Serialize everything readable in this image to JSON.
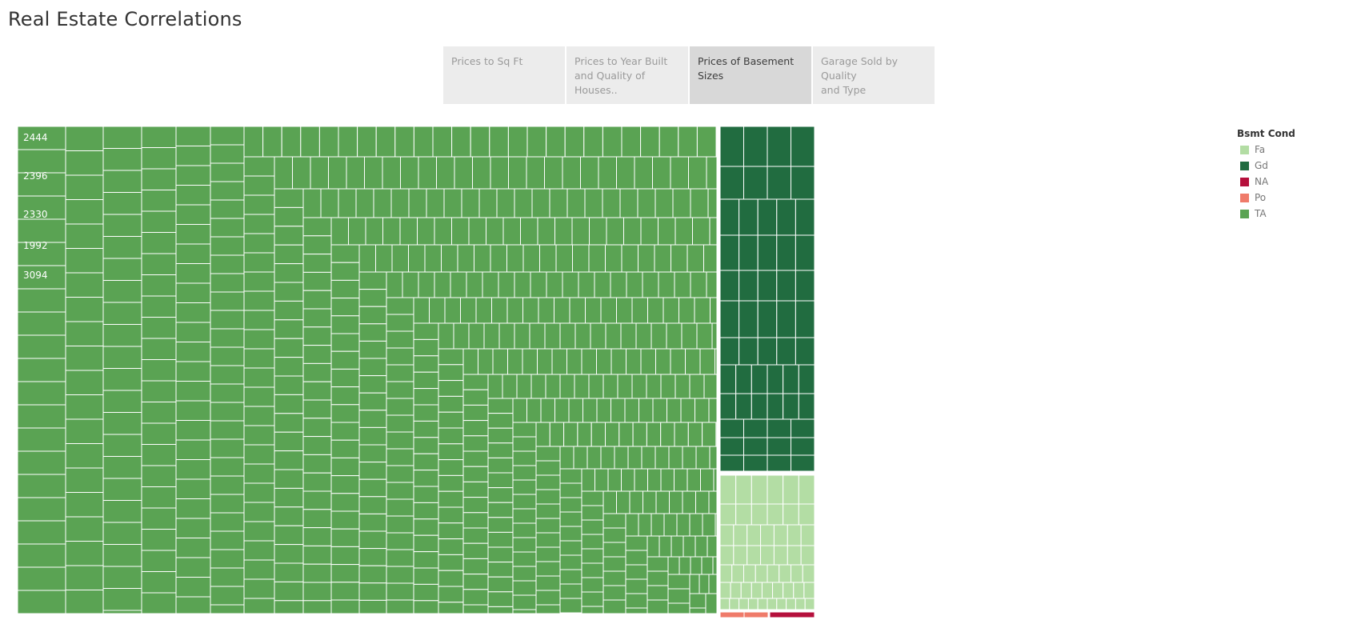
{
  "title": "Real Estate Correlations",
  "tabs": [
    {
      "line1": "Prices to Sq Ft",
      "line2": "",
      "active": false
    },
    {
      "line1": "Prices to Year Built",
      "line2": "and Quality of Houses..",
      "active": false
    },
    {
      "line1": "Prices of Basement",
      "line2": "Sizes",
      "active": true
    },
    {
      "line1": "Garage Sold by Quality",
      "line2": "and Type",
      "active": false
    }
  ],
  "legend": {
    "title": "Bsmt Cond",
    "items": [
      {
        "label": "Fa",
        "color": "#b3dda4"
      },
      {
        "label": "Gd",
        "color": "#216c40"
      },
      {
        "label": "NA",
        "color": "#b5103c"
      },
      {
        "label": "Po",
        "color": "#ef7b6a"
      },
      {
        "label": "TA",
        "color": "#5aa353"
      }
    ]
  },
  "chart_data": {
    "type": "treemap",
    "color_field": "Bsmt Cond",
    "groups": [
      {
        "name": "TA",
        "color": "#5aa353",
        "relative_size": 0.858
      },
      {
        "name": "Gd",
        "color": "#216c40",
        "relative_size": 0.082
      },
      {
        "name": "Fa",
        "color": "#b3dda4",
        "relative_size": 0.031
      },
      {
        "name": "Po",
        "color": "#ef7b6a",
        "relative_size": 0.0017
      },
      {
        "name": "NA",
        "color": "#b5103c",
        "relative_size": 0.0028
      }
    ],
    "visible_labels": [
      "2444",
      "2396",
      "2330",
      "1992",
      "3094"
    ]
  }
}
